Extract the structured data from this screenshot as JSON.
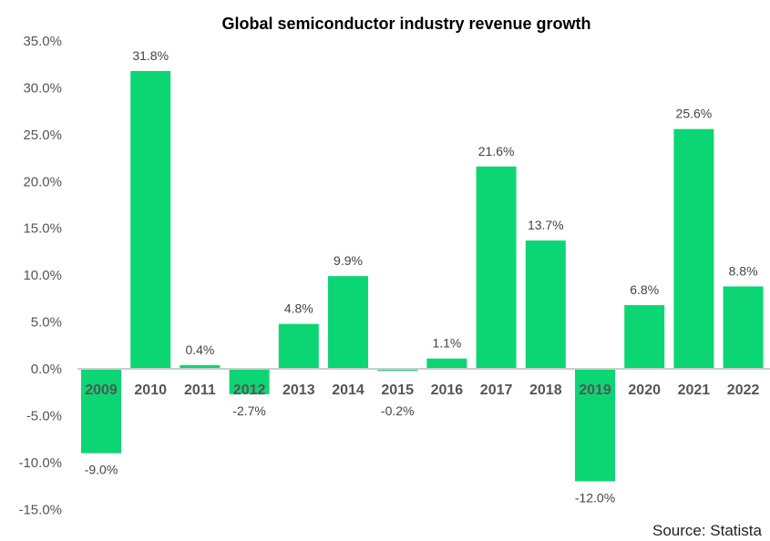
{
  "chart_data": {
    "type": "bar",
    "title": "Global semiconductor industry revenue growth",
    "categories": [
      "2009",
      "2010",
      "2011",
      "2012",
      "2013",
      "2014",
      "2015",
      "2016",
      "2017",
      "2018",
      "2019",
      "2020",
      "2021",
      "2022"
    ],
    "values": [
      -9.0,
      31.8,
      0.4,
      -2.7,
      4.8,
      9.9,
      -0.2,
      1.1,
      21.6,
      13.7,
      -12.0,
      6.8,
      25.6,
      8.8
    ],
    "data_labels": [
      "-9.0%",
      "31.8%",
      "0.4%",
      "-2.7%",
      "4.8%",
      "9.9%",
      "-0.2%",
      "1.1%",
      "21.6%",
      "13.7%",
      "-12.0%",
      "6.8%",
      "25.6%",
      "8.8%"
    ],
    "yticks": [
      "-15.0%",
      "-10.0%",
      "-5.0%",
      "0.0%",
      "5.0%",
      "10.0%",
      "15.0%",
      "20.0%",
      "25.0%",
      "30.0%",
      "35.0%"
    ],
    "ylim": [
      -15,
      35
    ],
    "xlabel": "",
    "ylabel": "",
    "grid": false,
    "bar_color": "#0cd673",
    "source": "Source: Statista"
  }
}
